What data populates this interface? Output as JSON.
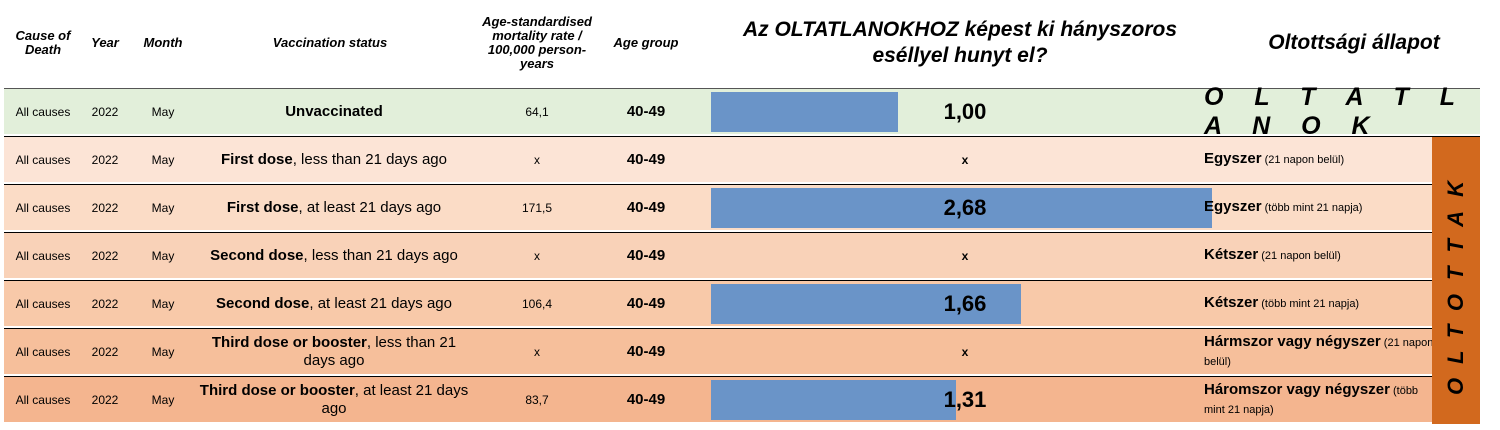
{
  "chart_data": {
    "type": "table",
    "title": "Az OLTATLANOKHOZ képest ki hányszoros eséllyel hunyt el?",
    "columns": {
      "cause": "Cause of Death",
      "year": "Year",
      "month": "Month",
      "status": "Vaccination status",
      "rate": "Age-standardised mortality rate / 100,000 person-years",
      "age": "Age group",
      "hu_status": "Oltottsági állapot"
    },
    "bar_max": 2.68,
    "rows": [
      {
        "cause": "All causes",
        "year": "2022",
        "month": "May",
        "status_bold": "Unvaccinated",
        "status_rest": "",
        "rate": "64,1",
        "age": "40-49",
        "ratio": 1.0,
        "ratio_label": "1,00",
        "hu_bold": "",
        "hu_small": "",
        "color": "#e2efda"
      },
      {
        "cause": "All causes",
        "year": "2022",
        "month": "May",
        "status_bold": "First dose",
        "status_rest": ", less than 21 days ago",
        "rate": "x",
        "age": "40-49",
        "ratio": null,
        "ratio_label": "x",
        "hu_bold": "Egyszer",
        "hu_small": " (21 napon belül)",
        "color": "#fce4d6"
      },
      {
        "cause": "All causes",
        "year": "2022",
        "month": "May",
        "status_bold": "First dose",
        "status_rest": ", at least 21 days ago",
        "rate": "171,5",
        "age": "40-49",
        "ratio": 2.68,
        "ratio_label": "2,68",
        "hu_bold": "Egyszer",
        "hu_small": " (több mint 21 napja)",
        "color": "#fbdcc6"
      },
      {
        "cause": "All causes",
        "year": "2022",
        "month": "May",
        "status_bold": "Second dose",
        "status_rest": ", less than 21 days ago",
        "rate": "x",
        "age": "40-49",
        "ratio": null,
        "ratio_label": "x",
        "hu_bold": "Kétszer",
        "hu_small": " (21 napon belül)",
        "color": "#f9d2b8"
      },
      {
        "cause": "All causes",
        "year": "2022",
        "month": "May",
        "status_bold": "Second dose",
        "status_rest": ",  at least 21 days ago",
        "rate": "106,4",
        "age": "40-49",
        "ratio": 1.66,
        "ratio_label": "1,66",
        "hu_bold": "Kétszer",
        "hu_small": " (több mint 21 napja)",
        "color": "#f8c9a9"
      },
      {
        "cause": "All causes",
        "year": "2022",
        "month": "May",
        "status_bold": "Third dose or booster",
        "status_rest": ", less than 21 days ago",
        "rate": "x",
        "age": "40-49",
        "ratio": null,
        "ratio_label": "x",
        "hu_bold": "Hármszor vagy négyszer",
        "hu_small": " (21 napon belül)",
        "color": "#f6bf9b"
      },
      {
        "cause": "All causes",
        "year": "2022",
        "month": "May",
        "status_bold": "Third dose or booster",
        "status_rest": ", at least 21 days ago",
        "rate": "83,7",
        "age": "40-49",
        "ratio": 1.31,
        "ratio_label": "1,31",
        "hu_bold": "Háromszor vagy négyszer",
        "hu_small": " (több mint 21 napja)",
        "color": "#f4b58f"
      }
    ],
    "group_labels": {
      "unvaccinated": "O L T A T L A N O K",
      "vaccinated": "OLTOTTAK"
    },
    "colors": {
      "bar": "#6a94c8",
      "vaccinated_band": "#d2691e"
    }
  }
}
